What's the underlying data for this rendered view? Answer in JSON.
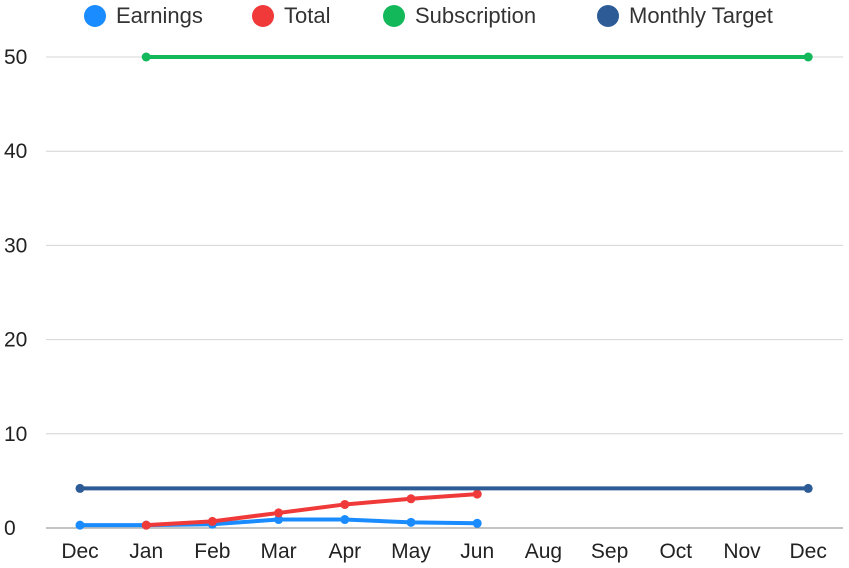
{
  "chart_data": {
    "type": "line",
    "title": "",
    "xlabel": "",
    "ylabel": "",
    "categories": [
      "Dec",
      "Jan",
      "Feb",
      "Mar",
      "Apr",
      "May",
      "Jun",
      "Aug",
      "Sep",
      "Oct",
      "Nov",
      "Dec"
    ],
    "ylim": [
      0,
      50
    ],
    "yticks": [
      0,
      10,
      20,
      30,
      40,
      50
    ],
    "grid": true,
    "legend_position": "top",
    "series": [
      {
        "name": "Earnings",
        "color": "#1a8cff",
        "values": [
          0.3,
          0.3,
          0.4,
          0.9,
          0.9,
          0.6,
          0.5,
          null,
          null,
          null,
          null,
          null
        ]
      },
      {
        "name": "Total",
        "color": "#f03a3a",
        "values": [
          null,
          0.3,
          0.7,
          1.6,
          2.5,
          3.1,
          3.6,
          null,
          null,
          null,
          null,
          null
        ]
      },
      {
        "name": "Subscription",
        "color": "#12b85a",
        "values": [
          null,
          50,
          null,
          null,
          null,
          null,
          null,
          null,
          null,
          null,
          null,
          50
        ]
      },
      {
        "name": "Monthly Target",
        "color": "#2d5b95",
        "values": [
          4.2,
          null,
          null,
          null,
          null,
          null,
          null,
          null,
          null,
          null,
          null,
          4.2
        ]
      }
    ]
  }
}
